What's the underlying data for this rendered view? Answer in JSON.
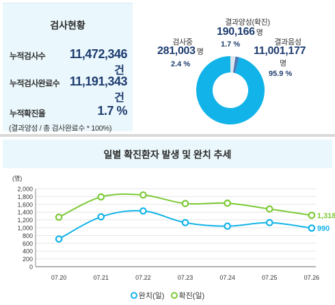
{
  "stats": {
    "title": "검사현황",
    "rows": [
      {
        "label": "누적검사수",
        "value": "11,472,346",
        "unit": "건"
      },
      {
        "label": "누적검사완료수",
        "value": "11,191,343",
        "unit": "건"
      },
      {
        "label": "누적확진율",
        "value": "1.7 %",
        "unit": ""
      }
    ],
    "note": "(결과양성 / 총 검사완료수 * 100%)"
  },
  "donut": {
    "testing": {
      "label": "검사중",
      "value": "281,003",
      "unit": "명",
      "pct": "2.4 %"
    },
    "positive": {
      "label": "결과양성(확진)",
      "value": "190,166",
      "unit": "명",
      "pct": "1.7 %"
    },
    "negative": {
      "label": "결과음성",
      "value": "11,001,177",
      "unit": "명",
      "pct": "95.9 %"
    },
    "colors": {
      "negative": "#12b3e8",
      "testing": "#dde6ec",
      "positive": "#4a7ab8"
    }
  },
  "chart": {
    "title": "일별 확진환자 발생 및 완치 추세",
    "legend": {
      "recovered": "완치(일)",
      "confirmed": "확진(일)"
    }
  },
  "chart_data": {
    "type": "line",
    "title": "일별 확진환자 발생 및 완치 추세",
    "ylabel": "(명)",
    "xlabel": "",
    "ylim": [
      0,
      2000
    ],
    "y_ticks": [
      "0",
      "200",
      "400",
      "600",
      "800",
      "1,000",
      "1,200",
      "1,400",
      "1,600",
      "1,800",
      "2,000"
    ],
    "x": [
      "07.20",
      "07.21",
      "07.22",
      "07.23",
      "07.24",
      "07.25",
      "07.26"
    ],
    "series": [
      {
        "name": "완치(일)",
        "color": "#12b3e8",
        "values": [
          710,
          1280,
          1430,
          1130,
          1040,
          1130,
          990
        ]
      },
      {
        "name": "확진(일)",
        "color": "#7cc934",
        "values": [
          1270,
          1790,
          1840,
          1620,
          1630,
          1480,
          1318
        ]
      }
    ],
    "end_labels": [
      "990",
      "1,318"
    ],
    "grid": true
  }
}
